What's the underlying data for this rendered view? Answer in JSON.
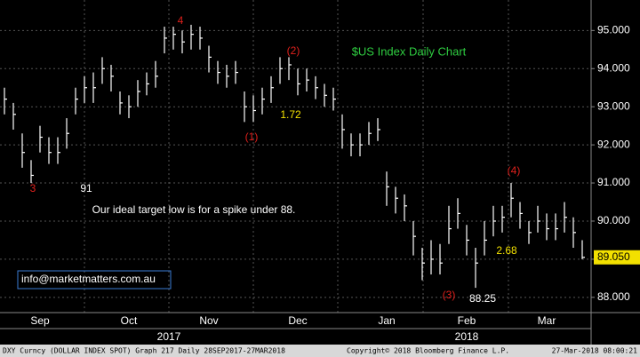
{
  "chart_data": {
    "type": "ohlc",
    "title": "$US Index Daily Chart",
    "color": "#ffffff",
    "categories": [
      null,
      null,
      null,
      null,
      "Sep",
      null,
      null,
      null,
      null,
      null,
      null,
      null,
      null,
      null,
      "Oct",
      null,
      null,
      null,
      null,
      null,
      null,
      null,
      null,
      "Nov",
      null,
      null,
      null,
      null,
      null,
      null,
      null,
      null,
      null,
      "Dec",
      null,
      null,
      null,
      null,
      null,
      null,
      null,
      null,
      null,
      "Jan",
      null,
      null,
      null,
      null,
      null,
      null,
      null,
      null,
      "Feb",
      null,
      null,
      null,
      null,
      null,
      null,
      null,
      null,
      "Mar",
      null,
      null,
      null,
      null
    ],
    "high": [
      93.5,
      93.1,
      92.3,
      91.6,
      92.5,
      92.2,
      92.2,
      92.7,
      93.5,
      93.8,
      93.9,
      94.3,
      94.1,
      93.4,
      93.3,
      93.7,
      93.9,
      94.2,
      95.1,
      95.1,
      95.0,
      95.15,
      95.1,
      94.6,
      94.2,
      94.1,
      94.2,
      93.4,
      93.3,
      93.5,
      93.8,
      94.3,
      94.3,
      94.0,
      94.0,
      93.8,
      93.6,
      93.5,
      92.8,
      92.3,
      92.3,
      92.6,
      92.7,
      91.3,
      90.9,
      90.7,
      90.0,
      89.3,
      89.5,
      89.4,
      90.4,
      90.6,
      89.9,
      89.3,
      90.0,
      90.4,
      90.4,
      91.0,
      90.5,
      90.0,
      90.4,
      90.2,
      90.2,
      90.5,
      90.1,
      89.5
    ],
    "low": [
      92.8,
      92.4,
      91.4,
      91.0,
      91.8,
      91.5,
      91.5,
      91.9,
      92.8,
      93.1,
      93.1,
      93.6,
      93.4,
      92.8,
      92.7,
      93.0,
      93.3,
      93.5,
      94.4,
      94.5,
      94.4,
      94.5,
      94.5,
      93.9,
      93.6,
      93.5,
      93.6,
      92.6,
      92.6,
      92.8,
      93.1,
      93.6,
      93.7,
      93.3,
      93.4,
      93.2,
      93.0,
      92.9,
      91.9,
      91.7,
      91.7,
      92.0,
      92.1,
      90.4,
      90.2,
      90.0,
      89.1,
      88.45,
      88.6,
      88.6,
      89.4,
      89.8,
      89.1,
      88.25,
      89.1,
      89.6,
      89.7,
      90.1,
      89.8,
      89.4,
      89.7,
      89.5,
      89.5,
      89.7,
      89.3,
      89.0
    ],
    "close": [
      93.2,
      92.8,
      91.8,
      91.2,
      92.2,
      91.8,
      91.8,
      92.3,
      93.2,
      93.5,
      93.5,
      94.0,
      93.8,
      93.1,
      93.0,
      93.4,
      93.6,
      93.8,
      94.8,
      94.9,
      94.7,
      94.9,
      94.8,
      94.3,
      93.9,
      93.8,
      93.9,
      93.0,
      92.9,
      93.2,
      93.5,
      94.0,
      94.1,
      93.6,
      93.7,
      93.5,
      93.3,
      93.2,
      92.4,
      92.0,
      92.0,
      92.3,
      92.4,
      90.9,
      90.6,
      90.4,
      89.6,
      88.9,
      89.0,
      88.9,
      89.8,
      90.2,
      89.5,
      88.9,
      89.5,
      90.0,
      90.1,
      90.6,
      90.2,
      89.7,
      90.0,
      89.8,
      89.8,
      90.1,
      89.7,
      89.05
    ],
    "ylim": [
      87.6,
      95.8
    ],
    "yticks": [
      {
        "value": 88,
        "label": "88.000"
      },
      {
        "value": 89,
        "label": "89.000"
      },
      {
        "value": 90,
        "label": "90.000"
      },
      {
        "value": 91,
        "label": "91.000"
      },
      {
        "value": 92,
        "label": "92.000"
      },
      {
        "value": 93,
        "label": "93.000"
      },
      {
        "value": 94,
        "label": "94.000"
      },
      {
        "value": 95,
        "label": "95.000"
      }
    ],
    "grid": true,
    "last_price": {
      "value": 89.05,
      "label": "89.050"
    },
    "year_labels": [
      "2017",
      "2018"
    ],
    "annotations": [
      {
        "text": "4",
        "color": "#e0201c"
      },
      {
        "text": "(2)",
        "color": "#e0201c"
      },
      {
        "text": "(1)",
        "color": "#e0201c"
      },
      {
        "text": "1.72",
        "color": "#f2e000"
      },
      {
        "text": "91",
        "color": "#ffffff"
      },
      {
        "text": "3",
        "color": "#e0201c"
      },
      {
        "text": "Our ideal target low is for a spike under 88.",
        "color": "#ffffff"
      },
      {
        "text": "(4)",
        "color": "#e0201c"
      },
      {
        "text": "2.68",
        "color": "#f2e000"
      },
      {
        "text": "(3)",
        "color": "#e0201c"
      },
      {
        "text": "88.25",
        "color": "#ffffff"
      }
    ],
    "contact": "info@marketmatters.com.au",
    "footer": {
      "left": "DXY Curncy (DOLLAR INDEX SPOT) Graph 217  Daily 28SEP2017-27MAR2018",
      "center": "Copyright© 2018 Bloomberg Finance L.P.",
      "right": "27-Mar-2018 08:00:21"
    }
  }
}
